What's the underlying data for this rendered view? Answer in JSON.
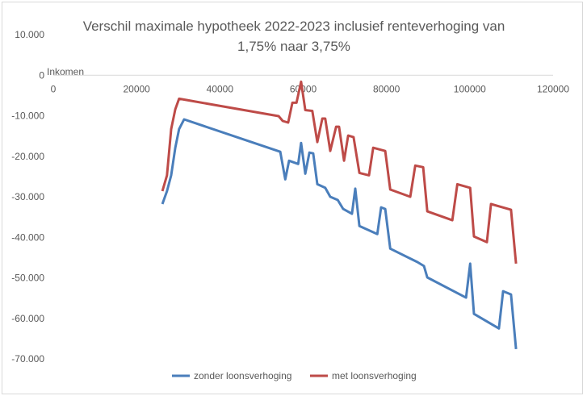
{
  "chart_data": {
    "type": "line",
    "title_lines": [
      "Verschil maximale hypotheek 2022-2023 inclusief renteverhoging van",
      "1,75% naar 3,75%"
    ],
    "xlabel": "Inkomen",
    "ylabel": "",
    "xlim": [
      0,
      120000
    ],
    "ylim": [
      -70000,
      10000
    ],
    "x_ticks": [
      0,
      20000,
      40000,
      60000,
      80000,
      100000,
      120000
    ],
    "x_tick_labels": [
      "0",
      "20000",
      "40000",
      "60000",
      "80000",
      "100000",
      "120000"
    ],
    "y_ticks": [
      10000,
      0,
      -10000,
      -20000,
      -30000,
      -40000,
      -50000,
      -60000,
      -70000
    ],
    "y_tick_labels": [
      "10.000",
      "0",
      "-10.000",
      "-20.000",
      "-30.000",
      "-40.000",
      "-50.000",
      "-60.000",
      "-70.000"
    ],
    "grid": false,
    "legend_position": "bottom",
    "series": [
      {
        "name": "zonder loonsverhoging",
        "color": "#4a7ebb",
        "x": [
          26200,
          27300,
          28300,
          29300,
          30200,
          31400,
          54500,
          55700,
          56600,
          58800,
          59500,
          60500,
          61500,
          62400,
          63400,
          65300,
          66500,
          68300,
          69600,
          71700,
          72500,
          73500,
          77800,
          78700,
          79700,
          80900,
          87400,
          89000,
          89800,
          99100,
          100100,
          101000,
          107000,
          108000,
          109900,
          111100
        ],
        "y": [
          -31800,
          -28600,
          -24700,
          -17900,
          -13300,
          -10900,
          -18900,
          -25700,
          -21100,
          -21900,
          -16700,
          -24300,
          -19100,
          -19300,
          -26900,
          -27800,
          -30000,
          -30800,
          -33000,
          -34200,
          -28000,
          -37200,
          -39200,
          -32600,
          -33000,
          -42800,
          -46100,
          -47100,
          -49900,
          -54900,
          -46500,
          -58900,
          -62500,
          -53300,
          -54100,
          -67600
        ]
      },
      {
        "name": "met loonsverhoging",
        "color": "#be4b48",
        "x": [
          26200,
          27300,
          28300,
          29300,
          30200,
          32400,
          54100,
          55100,
          56400,
          57400,
          58400,
          59500,
          60500,
          62200,
          63400,
          64600,
          65300,
          66500,
          67900,
          68600,
          69800,
          70800,
          72100,
          73500,
          75800,
          76800,
          79700,
          80900,
          85700,
          86900,
          88800,
          89800,
          95800,
          97000,
          100100,
          101000,
          104100,
          105100,
          109900,
          111100
        ],
        "y": [
          -28600,
          -24700,
          -13300,
          -8400,
          -5800,
          -6200,
          -10100,
          -11300,
          -11700,
          -6800,
          -6800,
          -1600,
          -8600,
          -8800,
          -16500,
          -10700,
          -10700,
          -18700,
          -12700,
          -12700,
          -21100,
          -14900,
          -15300,
          -24100,
          -24700,
          -17900,
          -18700,
          -28200,
          -30000,
          -22300,
          -22700,
          -33600,
          -35800,
          -26900,
          -27800,
          -39800,
          -41200,
          -31800,
          -33200,
          -46500
        ]
      }
    ]
  }
}
